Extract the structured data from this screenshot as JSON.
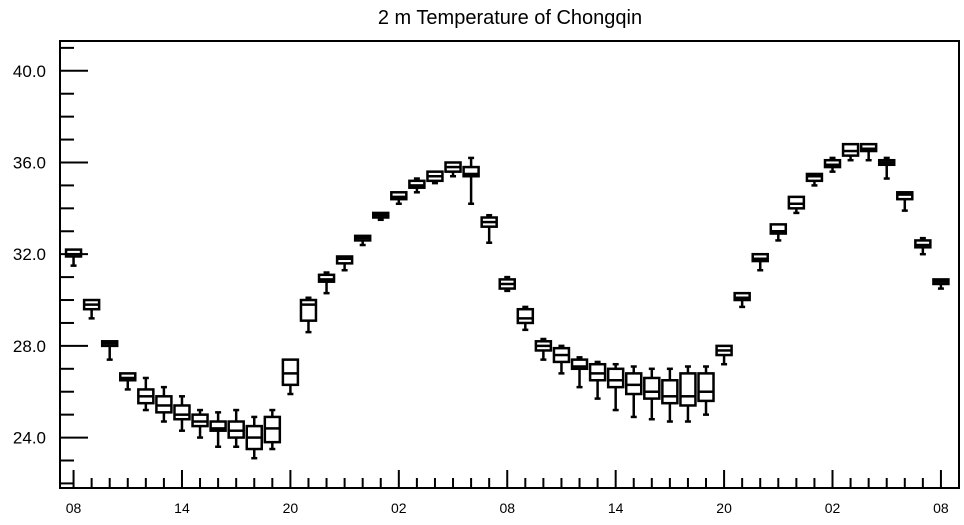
{
  "chart_data": {
    "type": "boxplot",
    "title": "2 m Temperature of Chongqin",
    "xlabel": "",
    "ylabel": "",
    "x_ticks": [
      "08",
      "14",
      "20",
      "02",
      "08",
      "14",
      "20",
      "02",
      "08"
    ],
    "x_tick_hours": [
      0,
      6,
      12,
      18,
      24,
      30,
      36,
      42,
      48
    ],
    "xlim": [
      -0.75,
      49
    ],
    "y_ticks": [
      "24.0",
      "28.0",
      "32.0",
      "36.0",
      "40.0"
    ],
    "y_tick_values": [
      24,
      28,
      32,
      36,
      40
    ],
    "ylim": [
      21.8,
      41.3
    ],
    "grid": false,
    "legend": "none",
    "series": [
      {
        "x": [
          0,
          1,
          2,
          3,
          4,
          5,
          6,
          7,
          8,
          9,
          10,
          11,
          12,
          13,
          14,
          15,
          16,
          17,
          18,
          19,
          20,
          21,
          22,
          23,
          24,
          25,
          26,
          27,
          28,
          29,
          30,
          31,
          32,
          33,
          34,
          35,
          36,
          37,
          38,
          39,
          40,
          41,
          42,
          43,
          44,
          45,
          46,
          47,
          48
        ],
        "whisker_low": [
          31.5,
          29.2,
          27.4,
          26.1,
          25.2,
          24.7,
          24.3,
          24.0,
          23.6,
          23.6,
          23.1,
          23.5,
          25.9,
          28.6,
          30.3,
          31.3,
          32.4,
          33.5,
          34.2,
          34.7,
          35.1,
          35.4,
          34.2,
          32.5,
          30.4,
          28.7,
          27.4,
          26.8,
          26.2,
          25.7,
          25.2,
          24.9,
          24.8,
          24.7,
          24.7,
          25.0,
          27.2,
          29.7,
          31.3,
          32.6,
          33.8,
          35.0,
          35.6,
          36.1,
          36.1,
          35.3,
          33.9,
          32.0,
          30.5
        ],
        "q1": [
          31.9,
          29.6,
          28.0,
          26.5,
          25.5,
          25.1,
          24.8,
          24.5,
          24.3,
          24.0,
          23.5,
          23.8,
          26.3,
          29.1,
          30.8,
          31.6,
          32.6,
          33.6,
          34.4,
          34.9,
          35.2,
          35.6,
          35.4,
          33.2,
          30.5,
          29.0,
          27.8,
          27.3,
          27.0,
          26.5,
          26.2,
          25.9,
          25.7,
          25.5,
          25.4,
          25.6,
          27.6,
          30.0,
          31.7,
          32.9,
          34.0,
          35.2,
          35.8,
          36.3,
          36.5,
          35.9,
          34.4,
          32.3,
          30.7
        ],
        "median": [
          32.0,
          29.8,
          28.1,
          26.6,
          25.8,
          25.4,
          25.0,
          24.7,
          24.4,
          24.3,
          24.0,
          24.4,
          26.8,
          29.8,
          30.9,
          31.8,
          32.7,
          33.7,
          34.5,
          35.0,
          35.4,
          35.8,
          35.5,
          33.4,
          30.7,
          29.2,
          28.0,
          27.6,
          27.1,
          26.8,
          26.5,
          26.3,
          26.0,
          25.8,
          25.8,
          26.0,
          27.8,
          30.1,
          31.8,
          33.0,
          34.2,
          35.4,
          35.9,
          36.5,
          36.6,
          36.0,
          34.6,
          32.4,
          30.8
        ],
        "q3": [
          32.2,
          30.0,
          28.2,
          26.8,
          26.1,
          25.8,
          25.4,
          25.0,
          24.7,
          24.7,
          24.5,
          24.9,
          27.4,
          30.0,
          31.1,
          31.9,
          32.8,
          33.8,
          34.7,
          35.2,
          35.6,
          36.0,
          35.8,
          33.6,
          30.9,
          29.6,
          28.2,
          27.9,
          27.4,
          27.2,
          27.0,
          26.8,
          26.6,
          26.5,
          26.8,
          26.8,
          28.0,
          30.3,
          32.0,
          33.3,
          34.5,
          35.5,
          36.1,
          36.8,
          36.8,
          36.1,
          34.7,
          32.6,
          30.9
        ],
        "whisker_high": [
          32.2,
          30.0,
          28.2,
          26.8,
          26.6,
          26.2,
          25.8,
          25.2,
          25.1,
          25.2,
          24.9,
          25.2,
          27.4,
          30.1,
          31.2,
          31.9,
          32.8,
          33.8,
          34.7,
          35.3,
          35.6,
          36.0,
          36.2,
          33.7,
          31.0,
          29.7,
          28.3,
          28.0,
          27.5,
          27.3,
          27.2,
          27.1,
          27.0,
          27.0,
          27.1,
          27.1,
          28.0,
          30.3,
          32.0,
          33.3,
          34.5,
          35.5,
          36.2,
          36.8,
          36.8,
          36.2,
          34.7,
          32.7,
          30.9
        ]
      }
    ]
  }
}
